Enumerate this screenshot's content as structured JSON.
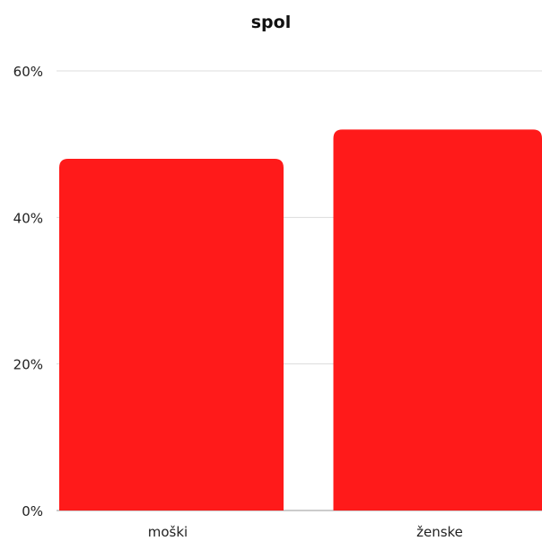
{
  "chart_data": {
    "type": "bar",
    "title": "spol",
    "categories": [
      "moški",
      "ženske"
    ],
    "values": [
      48,
      52
    ],
    "ylim": [
      0,
      60
    ],
    "y_ticks": [
      0,
      20,
      40,
      60
    ],
    "y_tick_format": "%",
    "grid": true,
    "legend": "none",
    "bar_color": "#ff1a1a"
  }
}
